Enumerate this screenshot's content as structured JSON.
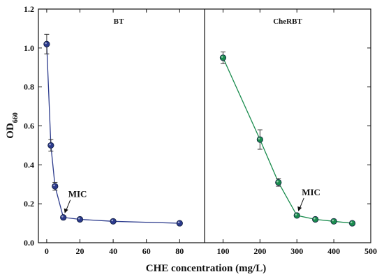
{
  "chart_data": [
    {
      "type": "line",
      "title": "BT",
      "xlabel": "CHE concentration (mg/L)",
      "ylabel": "OD660",
      "ylabel_main": "OD",
      "ylabel_sub": "660",
      "xlim": [
        -5,
        95
      ],
      "ylim": [
        0,
        1.2
      ],
      "xticks": [
        0,
        20,
        40,
        60,
        80
      ],
      "xticks_shown": [
        "0",
        "20",
        "40",
        "60",
        "80"
      ],
      "yticks": [
        0.0,
        0.2,
        0.4,
        0.6,
        0.8,
        1.0,
        1.2
      ],
      "ytick_labels": [
        "0.0",
        "0.2",
        "0.4",
        "0.6",
        "0.8",
        "1.0",
        "1.2"
      ],
      "grid": false,
      "color": "#2b3a8c",
      "series": [
        {
          "x": [
            0,
            2.5,
            5,
            10,
            20,
            40,
            80
          ],
          "y": [
            1.02,
            0.5,
            0.29,
            0.13,
            0.12,
            0.11,
            0.1
          ],
          "err": [
            0.05,
            0.03,
            0.02,
            0.005,
            0.005,
            0.005,
            0.005
          ]
        }
      ],
      "annotation": {
        "text": "MIC",
        "x": 10,
        "y": 0.13
      }
    },
    {
      "type": "line",
      "title": "CheRBT",
      "xlim": [
        50,
        500
      ],
      "ylim": [
        0,
        1.2
      ],
      "xticks": [
        100,
        200,
        300,
        400,
        500
      ],
      "xticks_shown": [
        "100",
        "200",
        "300",
        "400",
        "500"
      ],
      "grid": false,
      "color": "#1a8c4e",
      "series": [
        {
          "x": [
            100,
            200,
            250,
            300,
            350,
            400,
            450
          ],
          "y": [
            0.95,
            0.53,
            0.31,
            0.14,
            0.12,
            0.11,
            0.1
          ],
          "err": [
            0.03,
            0.05,
            0.02,
            0.005,
            0.005,
            0.005,
            0.005
          ]
        }
      ],
      "annotation": {
        "text": "MIC",
        "x": 300,
        "y": 0.14
      }
    }
  ]
}
